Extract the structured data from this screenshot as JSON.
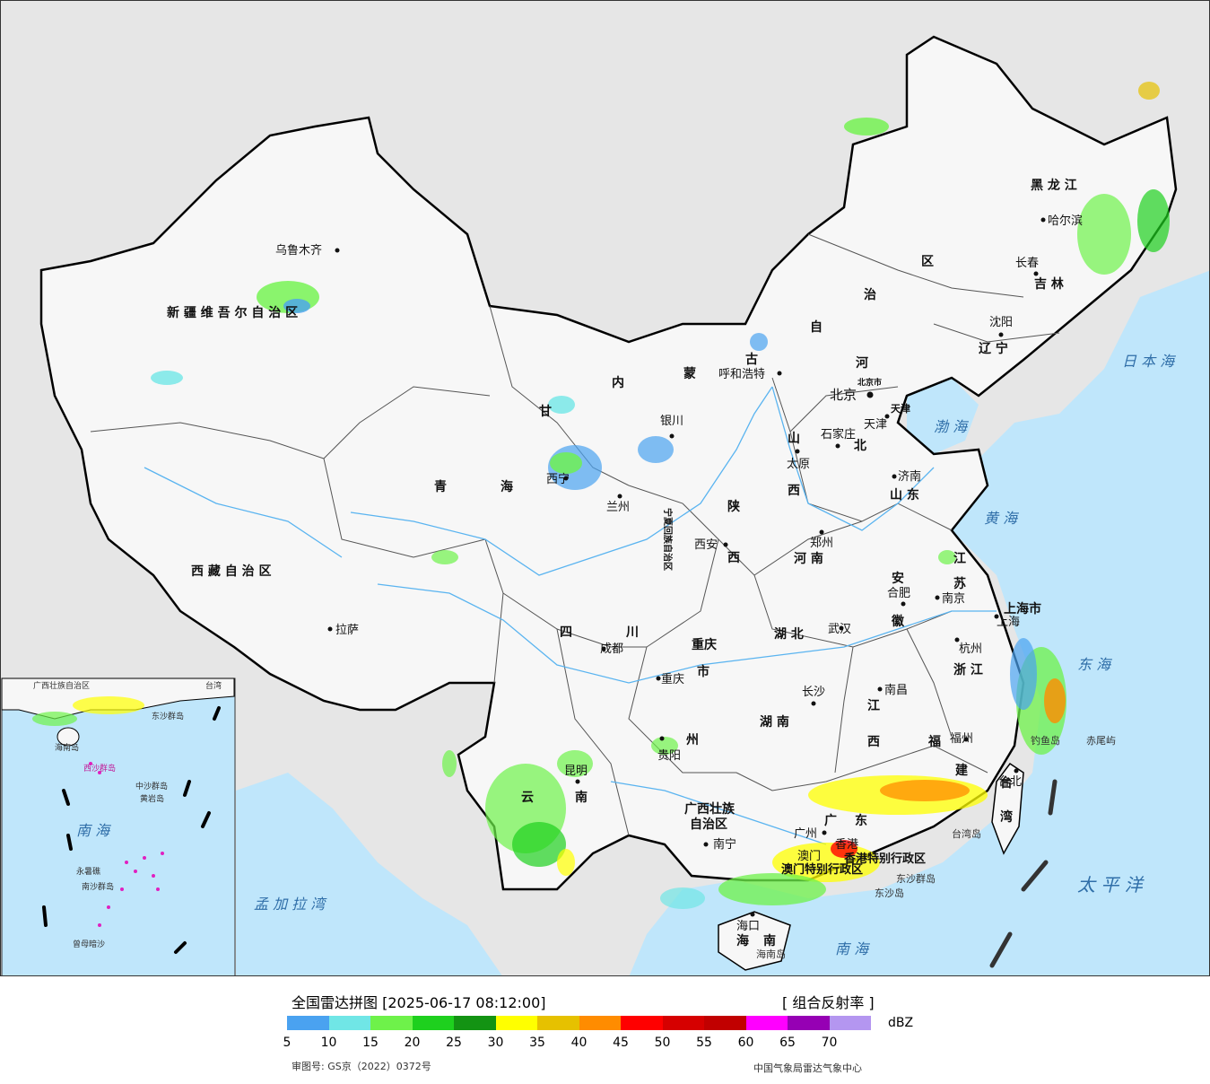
{
  "header": {
    "title": "全国雷达拼图 [2025-06-17 08:12:00]",
    "product": "[ 组合反射率 ]",
    "unit": "dBZ"
  },
  "colorbar": {
    "colors": [
      "#4aa2f0",
      "#70e6e6",
      "#6ef24a",
      "#1ed01e",
      "#139313",
      "#ffff00",
      "#e6c100",
      "#ff8c00",
      "#ff0000",
      "#d60000",
      "#c10000",
      "#ff00ff",
      "#9600b4",
      "#b496f0"
    ],
    "ticks": [
      "5",
      "10",
      "15",
      "20",
      "25",
      "30",
      "35",
      "40",
      "45",
      "50",
      "55",
      "60",
      "65",
      "70"
    ]
  },
  "footer": {
    "approval": "审图号: GS京（2022）0372号",
    "agency": "中国气象局雷达气象中心"
  },
  "colors": {
    "land": "#f7f7f7",
    "sea": "#bfe6fb",
    "foreign": "#e6e6e6",
    "border": "#000000",
    "river": "#5ab4f0"
  },
  "provinces": {
    "xinjiang": "新 疆 维 吾 尔 自 治 区",
    "xizang": "西 藏 自 治 区",
    "qinghai_a": "青",
    "qinghai_b": "海",
    "gansu": "甘",
    "sichuan_a": "四",
    "sichuan_b": "川",
    "neimenggu_a": "内",
    "neimenggu_b": "蒙",
    "neimenggu_c": "古",
    "neimenggu_d": "自",
    "neimenggu_e": "治",
    "neimenggu_f": "区",
    "heilongjiang": "黑 龙 江",
    "jilin": "吉 林",
    "liaoning": "辽 宁",
    "hebei_a": "河",
    "hebei_b": "北",
    "shanxi_a": "山",
    "shanxi_b": "西",
    "shaanxi_a": "陕",
    "shaanxi_b": "西",
    "henan": "河 南",
    "shandong": "山 东",
    "jiangsu_a": "江",
    "jiangsu_b": "苏",
    "anhui_a": "安",
    "anhui_b": "徽",
    "hubei": "湖 北",
    "hunan": "湖 南",
    "jiangxi_a": "江",
    "jiangxi_b": "西",
    "zhejiang": "浙 江",
    "fujian_a": "福",
    "fujian_b": "建",
    "guangdong_a": "广",
    "guangdong_b": "东",
    "guangxi_a": "广西壮族",
    "guangxi_b": "自治区",
    "yunnan_a": "云",
    "yunnan_b": "南",
    "guizhou": "州",
    "chongqing_a": "重庆",
    "chongqing_b": "市",
    "hainan_a": "海",
    "hainan_b": "南",
    "taiwan_a": "台",
    "taiwan_b": "湾",
    "shanghai": "上海市",
    "ningxia": "宁夏回族自治区",
    "tianjin": "天津",
    "beijing": "北京市",
    "xianggang": "香港特别行政区",
    "aomen": "澳门特别行政区"
  },
  "cities": {
    "urumqi": "乌鲁木齐",
    "lhasa": "拉萨",
    "xining": "西宁",
    "lanzhou": "兰州",
    "yinchuan": "银川",
    "hohhot": "呼和浩特",
    "beijing": "北京",
    "tianjin": "天津",
    "shijiazhuang": "石家庄",
    "taiyuan": "太原",
    "jinan": "济南",
    "shenyang": "沈阳",
    "changchun": "长春",
    "harbin": "哈尔滨",
    "xian": "西安",
    "zhengzhou": "郑州",
    "hefei": "合肥",
    "nanjing": "南京",
    "shanghai": "上海",
    "hangzhou": "杭州",
    "wuhan": "武汉",
    "chengdu": "成都",
    "chongqing": "重庆",
    "changsha": "长沙",
    "nanchang": "南昌",
    "fuzhou": "福州",
    "guiyang": "贵阳",
    "kunming": "昆明",
    "nanning": "南宁",
    "guangzhou": "广州",
    "haikou": "海口",
    "taibei": "台北",
    "aomen": "澳门",
    "xianggang": "香港"
  },
  "seas": {
    "bohai": "渤 海",
    "huanghai": "黄 海",
    "donghai": "东 海",
    "nanhai": "南 海",
    "taipingyang": "太 平 洋",
    "ribenhai": "日 本 海",
    "mengjiala": "孟 加 拉 湾"
  },
  "islands": {
    "diaoyu": "钓鱼岛",
    "chiwei": "赤尾屿",
    "taiwan_island": "台湾岛",
    "dongsha_group": "东沙群岛",
    "dongsha": "东沙岛",
    "hainan_island": "海南岛"
  },
  "inset": {
    "sea": "南 海",
    "guangxi": "广西壮族自治区",
    "taiwan": "台湾",
    "xisha": "西沙群岛",
    "zhongsha": "中沙群岛",
    "huangyan": "黄岩岛",
    "nansha": "南沙群岛",
    "yongshu": "永暑礁",
    "zengmu": "曾母暗沙",
    "dongsha": "东沙群岛",
    "hainan": "海南岛"
  }
}
